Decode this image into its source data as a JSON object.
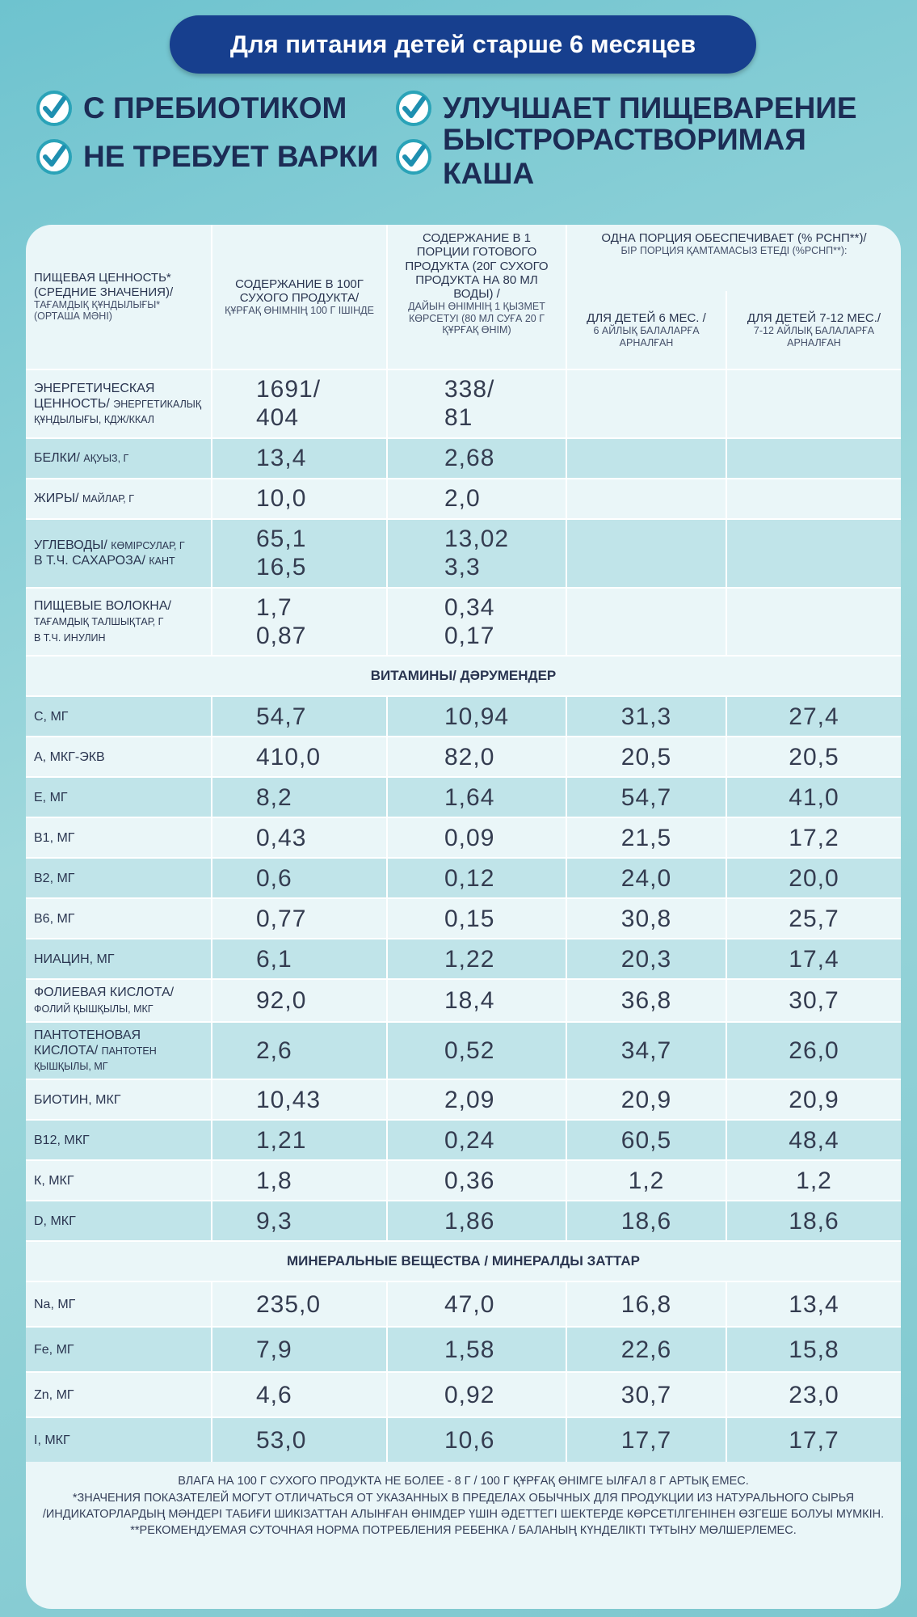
{
  "header": {
    "banner": "Для питания детей старше 6 месяцев",
    "features": [
      "С ПРЕБИОТИКОМ",
      "УЛУЧШАЕТ ПИЩЕВАРЕНИЕ",
      "НЕ ТРЕБУЕТ ВАРКИ",
      "БЫСТРОРАСТВОРИМАЯ КАША"
    ]
  },
  "table": {
    "columns": [
      {
        "title": "ПИЩЕВАЯ ЦЕННОСТЬ* (СРЕДНИЕ ЗНАЧЕНИЯ)/",
        "title_kz": "ТАҒАМДЫҚ ҚҰНДЫЛЫҒЫ* (ОРТАША МӘНІ)"
      },
      {
        "title": "СОДЕРЖАНИЕ В 100Г СУХОГО ПРОДУКТА/",
        "title_kz": "ҚҰРҒАҚ ӨНІМНІҢ 100 Г ІШІНДЕ"
      },
      {
        "title": "СОДЕРЖАНИЕ В 1 ПОРЦИИ ГОТОВОГО ПРОДУКТА (20Г СУХОГО ПРОДУКТА НА 80 МЛ ВОДЫ) /",
        "title_kz": "ДАЙЫН ӨНІМНІҢ 1 ҚЫЗМЕТ КӨРСЕТУІ (80 МЛ СУҒА 20 Г ҚҰРҒАҚ ӨНІМ)"
      },
      {
        "title": "ДЛЯ ДЕТЕЙ 6 МЕС. /",
        "title_kz": "6 АЙЛЫҚ БАЛАЛАРҒА АРНАЛҒАН"
      },
      {
        "title": "ДЛЯ ДЕТЕЙ 7-12 МЕС./",
        "title_kz": "7-12 АЙЛЫҚ БАЛАЛАРҒА АРНАЛҒАН"
      }
    ],
    "group": {
      "title": "ОДНА ПОРЦИЯ ОБЕСПЕЧИВАЕТ (% РСНП**)/",
      "title_kz": "БІР ПОРЦИЯ ҚАМТАМАСЫЗ ЕТЕДІ (%РСНП**):"
    },
    "sections": [
      {
        "rows": [
          {
            "label": "ЭНЕРГЕТИЧЕСКАЯ ЦЕННОСТЬ/",
            "label_kz": "ЭНЕРГЕТИКАЛЫҚ ҚҰНДЫЛЫҒЫ, КДЖ/ККАЛ",
            "values": [
              "1691/\n404",
              "338/\n81"
            ]
          },
          {
            "label": "БЕЛКИ/",
            "label_kz": "АҚУЫЗ, Г",
            "values": [
              "13,4",
              "2,68"
            ]
          },
          {
            "label": "ЖИРЫ/",
            "label_kz": "МАЙЛАР, Г",
            "values": [
              "10,0",
              "2,0"
            ]
          },
          {
            "label": "УГЛЕВОДЫ/",
            "label_kz": "КӨМІРСУЛАР, Г",
            "values": [
              "65,1",
              "13,02"
            ],
            "sub": {
              "label": "В Т.Ч. САХАРОЗА/",
              "label_kz": "КАНТ",
              "values": [
                "16,5",
                "3,3"
              ]
            }
          },
          {
            "label": "ПИЩЕВЫЕ ВОЛОКНА/",
            "label_kz": "ТАҒАМДЫҚ ТАЛШЫҚТАР, Г",
            "values": [
              "1,7",
              "0,34"
            ],
            "sub": {
              "label": "",
              "label_kz": "В Т.Ч. ИНУЛИН",
              "values": [
                "0,87",
                "0,17"
              ]
            }
          }
        ]
      },
      {
        "title": "ВИТАМИНЫ/ ДӘРУМЕНДЕР",
        "rows": [
          {
            "label": "С, МГ",
            "values": [
              "54,7",
              "10,94",
              "31,3",
              "27,4"
            ]
          },
          {
            "label": "А, МКГ-ЭКВ",
            "values": [
              "410,0",
              "82,0",
              "20,5",
              "20,5"
            ]
          },
          {
            "label": "Е, МГ",
            "values": [
              "8,2",
              "1,64",
              "54,7",
              "41,0"
            ]
          },
          {
            "label": "В1, МГ",
            "values": [
              "0,43",
              "0,09",
              "21,5",
              "17,2"
            ]
          },
          {
            "label": "В2, МГ",
            "values": [
              "0,6",
              "0,12",
              "24,0",
              "20,0"
            ]
          },
          {
            "label": "В6, МГ",
            "values": [
              "0,77",
              "0,15",
              "30,8",
              "25,7"
            ]
          },
          {
            "label": "НИАЦИН, МГ",
            "values": [
              "6,1",
              "1,22",
              "20,3",
              "17,4"
            ]
          },
          {
            "label": "ФОЛИЕВАЯ КИСЛОТА/",
            "label_kz": "ФОЛИЙ ҚЫШҚЫЛЫ, МКГ",
            "values": [
              "92,0",
              "18,4",
              "36,8",
              "30,7"
            ]
          },
          {
            "label": "ПАНТОТЕНОВАЯ КИСЛОТА/",
            "label_kz": "ПАНТОТЕН ҚЫШҚЫЛЫ, МГ",
            "values": [
              "2,6",
              "0,52",
              "34,7",
              "26,0"
            ]
          },
          {
            "label": "БИОТИН, МКГ",
            "values": [
              "10,43",
              "2,09",
              "20,9",
              "20,9"
            ]
          },
          {
            "label": "В12, МКГ",
            "values": [
              "1,21",
              "0,24",
              "60,5",
              "48,4"
            ]
          },
          {
            "label": "К, МКГ",
            "values": [
              "1,8",
              "0,36",
              "1,2",
              "1,2"
            ]
          },
          {
            "label": "D, МКГ",
            "values": [
              "9,3",
              "1,86",
              "18,6",
              "18,6"
            ]
          }
        ]
      },
      {
        "title": "МИНЕРАЛЬНЫЕ ВЕЩЕСТВА / МИНЕРАЛДЫ ЗАТТАР",
        "rows": [
          {
            "label": "Na, МГ",
            "values": [
              "235,0",
              "47,0",
              "16,8",
              "13,4"
            ]
          },
          {
            "label": "Fe, МГ",
            "values": [
              "7,9",
              "1,58",
              "22,6",
              "15,8"
            ]
          },
          {
            "label": "Zn, МГ",
            "values": [
              "4,6",
              "0,92",
              "30,7",
              "23,0"
            ]
          },
          {
            "label": "I, МКГ",
            "values": [
              "53,0",
              "10,6",
              "17,7",
              "17,7"
            ]
          }
        ]
      }
    ]
  },
  "footnotes": [
    "ВЛАГА НА 100 Г СУХОГО ПРОДУКТА НЕ БОЛЕЕ - 8 Г / 100 Г ҚҰРҒАҚ ӨНІМГЕ ЫЛҒАЛ 8 Г АРТЫҚ ЕМЕС.",
    "*ЗНАЧЕНИЯ ПОКАЗАТЕЛЕЙ МОГУТ ОТЛИЧАТЬСЯ ОТ УКАЗАННЫХ В ПРЕДЕЛАХ ОБЫЧНЫХ ДЛЯ ПРОДУКЦИИ ИЗ НАТУРАЛЬНОГО СЫРЬЯ",
    "/ИНДИКАТОРЛАРДЫҢ МӘНДЕРІ ТАБИҒИ ШИКІЗАТТАН АЛЫНҒАН ӨНІМДЕР ҮШІН ӘДЕТТЕГІ ШЕКТЕРДЕ КӨРСЕТІЛГЕНІНЕН ӨЗГЕШЕ БОЛУЫ МҮМКІН.",
    "**РЕКОМЕНДУЕМАЯ СУТОЧНАЯ НОРМА ПОТРЕБЛЕНИЯ РЕБЕНКА / БАЛАНЫҢ КҮНДЕЛІКТІ ТҰТЫНУ МӨЛШЕРЛЕМЕС."
  ]
}
